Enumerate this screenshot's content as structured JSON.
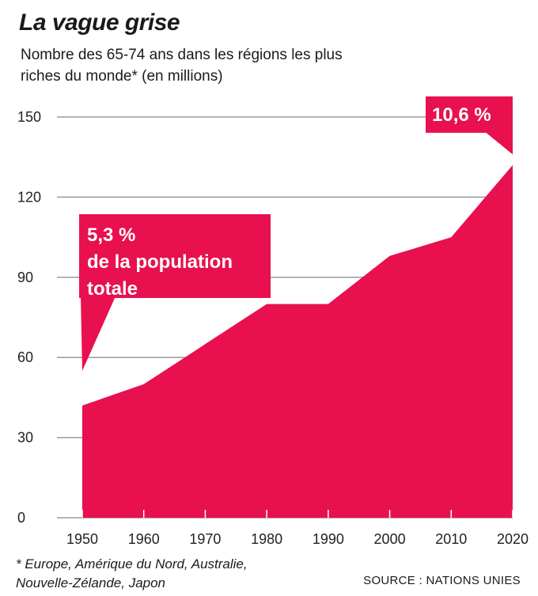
{
  "title": "La vague grise",
  "subtitle": "Nombre des 65-74 ans dans les régions les plus riches du monde* (en millions)",
  "footnote": "* Europe, Amérique du Nord, Australie, Nouvelle-Zélande, Japon",
  "source": "SOURCE : NATIONS UNIES",
  "colors": {
    "area": "#e8104f",
    "grid": "#9a9a9a",
    "text": "#1a1a1a"
  },
  "chart_data": {
    "type": "area",
    "x": [
      1950,
      1960,
      1970,
      1980,
      1990,
      2000,
      2010,
      2020
    ],
    "series": [
      {
        "values": [
          42,
          50,
          65,
          80,
          80,
          98,
          105,
          132
        ]
      }
    ],
    "xlabel": "",
    "ylabel": "",
    "ylim": [
      0,
      150
    ],
    "yticks": [
      0,
      30,
      60,
      90,
      120,
      150
    ],
    "grid": true,
    "annotations": [
      {
        "x": 1950,
        "lines": [
          "5,3 %",
          "de la population",
          "totale"
        ]
      },
      {
        "x": 2020,
        "lines": [
          "10,6 %"
        ]
      }
    ]
  }
}
